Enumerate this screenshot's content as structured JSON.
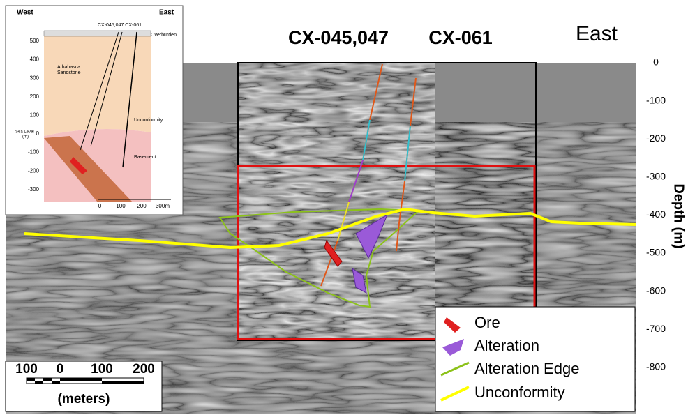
{
  "header": {
    "holes": [
      "CX-045,047",
      "CX-061"
    ],
    "direction": "East"
  },
  "depth_axis": {
    "label": "Depth (m)",
    "ticks": [
      0,
      -100,
      -200,
      -300,
      -400,
      -500,
      -600,
      -700,
      -800
    ]
  },
  "legend": {
    "items": [
      "Ore",
      "Alteration",
      "Alteration Edge",
      "Unconformity"
    ]
  },
  "scale_bar": {
    "labels": [
      100,
      0,
      100,
      200
    ],
    "unit": "(meters)"
  },
  "inset": {
    "west": "West",
    "east": "East",
    "holes": "CX-045,047 CX-061",
    "overburden": "Overburden",
    "sandstone": [
      "Athabasca",
      "Sandstone"
    ],
    "unconformity": "Unconformity",
    "basement": "Basement",
    "sea_level": [
      "Sea Level",
      "(m)"
    ],
    "elevation_ticks": [
      500,
      400,
      300,
      200,
      100,
      0,
      -100,
      -200,
      -300
    ],
    "scale_labels": [
      0,
      100,
      200,
      "300m"
    ]
  }
}
